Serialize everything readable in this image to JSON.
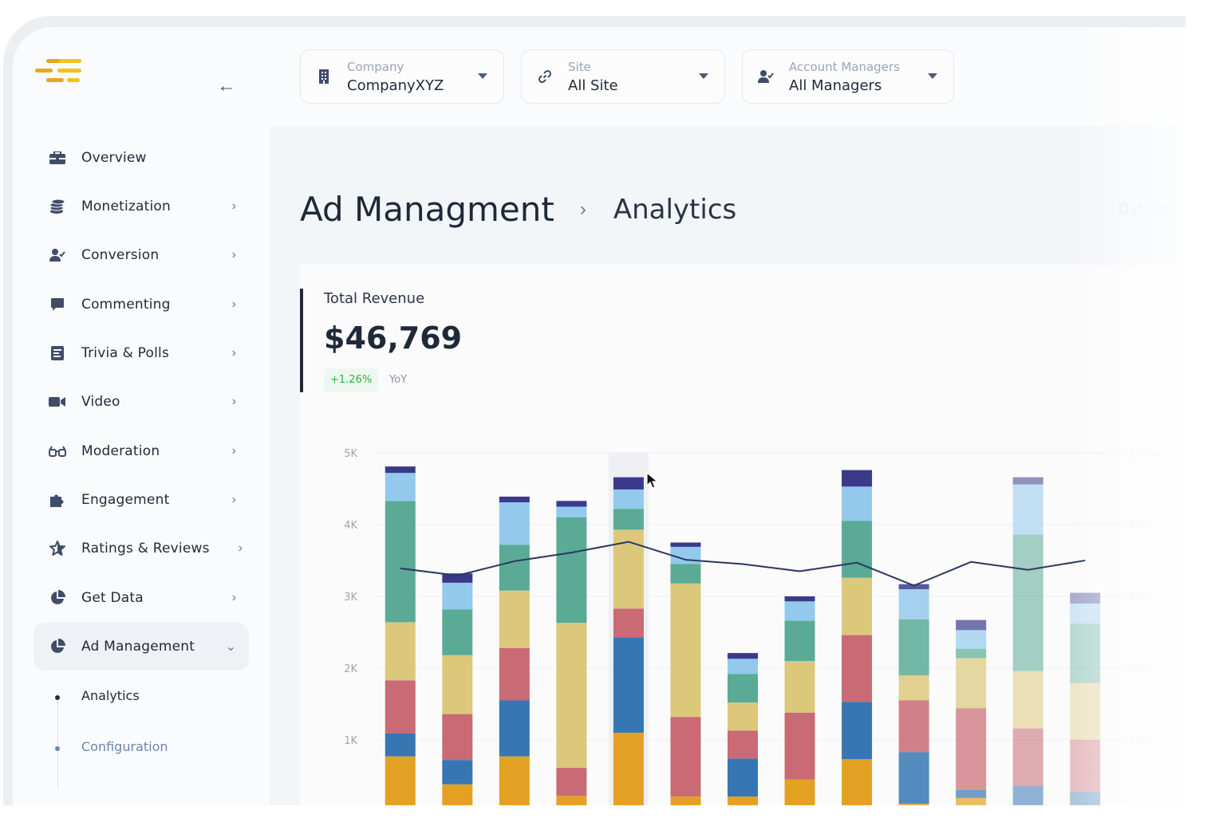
{
  "back_icon": "arrow-left-icon",
  "filters": [
    {
      "label": "Company",
      "value": "CompanyXYZ",
      "icon": "building-icon"
    },
    {
      "label": "Site",
      "value": "All Site",
      "icon": "link-icon"
    },
    {
      "label": "Account Managers",
      "value": "All Managers",
      "icon": "user-check-icon"
    }
  ],
  "sidebar": {
    "items": [
      {
        "label": "Overview",
        "icon": "briefcase-icon",
        "chevron": ""
      },
      {
        "label": "Monetization",
        "icon": "coins-icon",
        "chevron": "›"
      },
      {
        "label": "Conversion",
        "icon": "user-check-icon",
        "chevron": "›"
      },
      {
        "label": "Commenting",
        "icon": "comment-icon",
        "chevron": "›"
      },
      {
        "label": "Trivia & Polls",
        "icon": "poll-icon",
        "chevron": "›"
      },
      {
        "label": "Video",
        "icon": "video-icon",
        "chevron": "›"
      },
      {
        "label": "Moderation",
        "icon": "glasses-icon",
        "chevron": "›"
      },
      {
        "label": "Engagement",
        "icon": "puzzle-icon",
        "chevron": "›"
      },
      {
        "label": "Ratings & Reviews",
        "icon": "star-icon",
        "chevron": "›"
      },
      {
        "label": "Get Data",
        "icon": "pie-chart-icon",
        "chevron": "›"
      },
      {
        "label": "Ad Management",
        "icon": "pie-chart-icon",
        "chevron": "⌄"
      }
    ],
    "subitems": [
      "Analytics",
      "Configuration"
    ]
  },
  "breadcrumb": {
    "main": "Ad Managment",
    "separator": "›",
    "sub": "Analytics"
  },
  "faded_note": "Data la",
  "metric": {
    "title": "Total Revenue",
    "value": "$46,769",
    "change": "+1.26%",
    "period": "YoY"
  },
  "colors": {
    "accent_dark": "#1f2937",
    "positive": "#2fb344",
    "segments": [
      "#e3a124",
      "#3677b3",
      "#c96a74",
      "#dcc87a",
      "#5aaa96",
      "#93c9ec",
      "#3a3a8a"
    ],
    "line": "#2c3760"
  },
  "chart_data": {
    "type": "bar",
    "stacked": true,
    "y_tick_labels": [
      "1K",
      "2K",
      "3K",
      "4K",
      "5K"
    ],
    "ylim": [
      0,
      5000
    ],
    "right_axis_tick_labels": [
      "20%",
      "40%",
      "60%",
      "80%",
      "100%"
    ],
    "grid": true,
    "bars": [
      [
        770,
        320,
        740,
        810,
        1690,
        390,
        90
      ],
      [
        380,
        340,
        640,
        820,
        640,
        370,
        130
      ],
      [
        770,
        780,
        730,
        800,
        640,
        590,
        80
      ],
      [
        220,
        0,
        390,
        2020,
        1470,
        150,
        80
      ],
      [
        1100,
        1330,
        400,
        1100,
        290,
        270,
        170
      ],
      [
        210,
        0,
        1110,
        1860,
        270,
        240,
        60
      ],
      [
        210,
        530,
        390,
        390,
        400,
        210,
        80
      ],
      [
        450,
        0,
        930,
        720,
        560,
        270,
        70
      ],
      [
        730,
        800,
        930,
        800,
        790,
        480,
        230
      ],
      [
        110,
        720,
        720,
        350,
        780,
        420,
        70
      ],
      [
        190,
        110,
        1140,
        700,
        130,
        260,
        140
      ],
      [
        90,
        270,
        800,
        800,
        1900,
        700,
        100
      ],
      [
        20,
        250,
        730,
        790,
        830,
        280,
        150
      ]
    ],
    "line_values": [
      3390,
      3290,
      3490,
      3610,
      3760,
      3510,
      3450,
      3350,
      3470,
      3150,
      3480,
      3370,
      3500
    ],
    "highlighted_bar": 4
  }
}
